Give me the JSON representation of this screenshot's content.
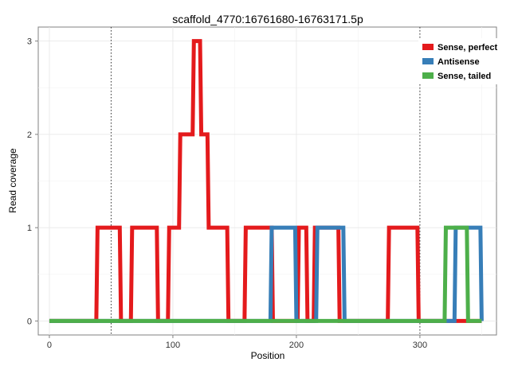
{
  "chart_data": {
    "type": "line",
    "title": "scaffold_4770:16761680-16763171.5p",
    "xlabel": "Position",
    "ylabel": "Read coverage",
    "xlim": [
      -9,
      362
    ],
    "ylim": [
      -0.15,
      3.15
    ],
    "xticks": [
      0,
      100,
      200,
      300
    ],
    "yticks": [
      0,
      1,
      2,
      3
    ],
    "grid": true,
    "legend_position": "top-right",
    "vlines": [
      50,
      300
    ],
    "series": [
      {
        "name": "Sense, perfect",
        "color": "#e41a1c",
        "x": [
          0,
          38,
          39,
          57,
          58,
          66,
          67,
          87,
          88,
          96,
          97,
          105,
          106,
          116,
          117,
          122,
          123,
          128,
          129,
          144,
          145,
          158,
          159,
          180,
          181,
          201,
          202,
          208,
          209,
          214,
          215,
          234,
          235,
          274,
          275,
          298,
          299,
          350
        ],
        "y": [
          0,
          0,
          1,
          1,
          0,
          0,
          1,
          1,
          0,
          0,
          1,
          1,
          2,
          2,
          3,
          3,
          2,
          2,
          1,
          1,
          0,
          0,
          1,
          1,
          0,
          0,
          1,
          1,
          0,
          0,
          1,
          1,
          0,
          0,
          1,
          1,
          0,
          0
        ]
      },
      {
        "name": "Antisense",
        "color": "#377eb8",
        "x": [
          0,
          179,
          180,
          199,
          200,
          216,
          217,
          238,
          239,
          328,
          329,
          349,
          350
        ],
        "y": [
          0,
          0,
          1,
          1,
          0,
          0,
          1,
          1,
          0,
          0,
          1,
          1,
          0
        ]
      },
      {
        "name": "Sense, tailed",
        "color": "#4daf4a",
        "x": [
          0,
          320,
          321,
          338,
          339,
          350
        ],
        "y": [
          0,
          0,
          1,
          1,
          0,
          0
        ]
      }
    ]
  }
}
